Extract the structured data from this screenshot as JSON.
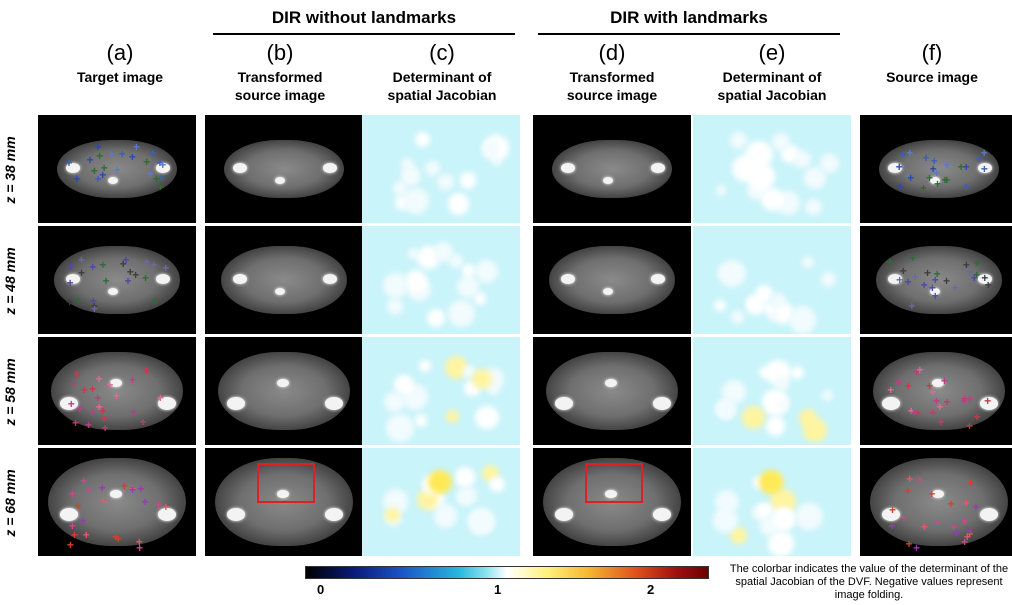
{
  "groups": {
    "without": "DIR without landmarks",
    "with": "DIR with landmarks"
  },
  "columns": [
    {
      "letter": "(a)",
      "subtitle": "Target image"
    },
    {
      "letter": "(b)",
      "subtitle": "Transformed\nsource image"
    },
    {
      "letter": "(c)",
      "subtitle": "Determinant of\nspatial Jacobian"
    },
    {
      "letter": "(d)",
      "subtitle": "Transformed\nsource image"
    },
    {
      "letter": "(e)",
      "subtitle": "Determinant of\nspatial Jacobian"
    },
    {
      "letter": "(f)",
      "subtitle": "Source image"
    }
  ],
  "rows": [
    {
      "label": "z = 38 mm"
    },
    {
      "label": "z = 48 mm"
    },
    {
      "label": "z = 58 mm"
    },
    {
      "label": "z = 68 mm"
    }
  ],
  "colorbar": {
    "ticks": [
      "0",
      "1",
      "2"
    ],
    "tick_values": [
      0,
      1,
      2
    ],
    "range": [
      -0.1,
      2.4
    ],
    "colors": [
      "#000000",
      "#1a55c8",
      "#27b7dd",
      "#ffffff",
      "#fff27a",
      "#e0521c",
      "#6e0000"
    ]
  },
  "caption": "The colorbar indicates the value of the determinant of the spatial Jacobian of the DVF. Negative values represent image folding."
}
